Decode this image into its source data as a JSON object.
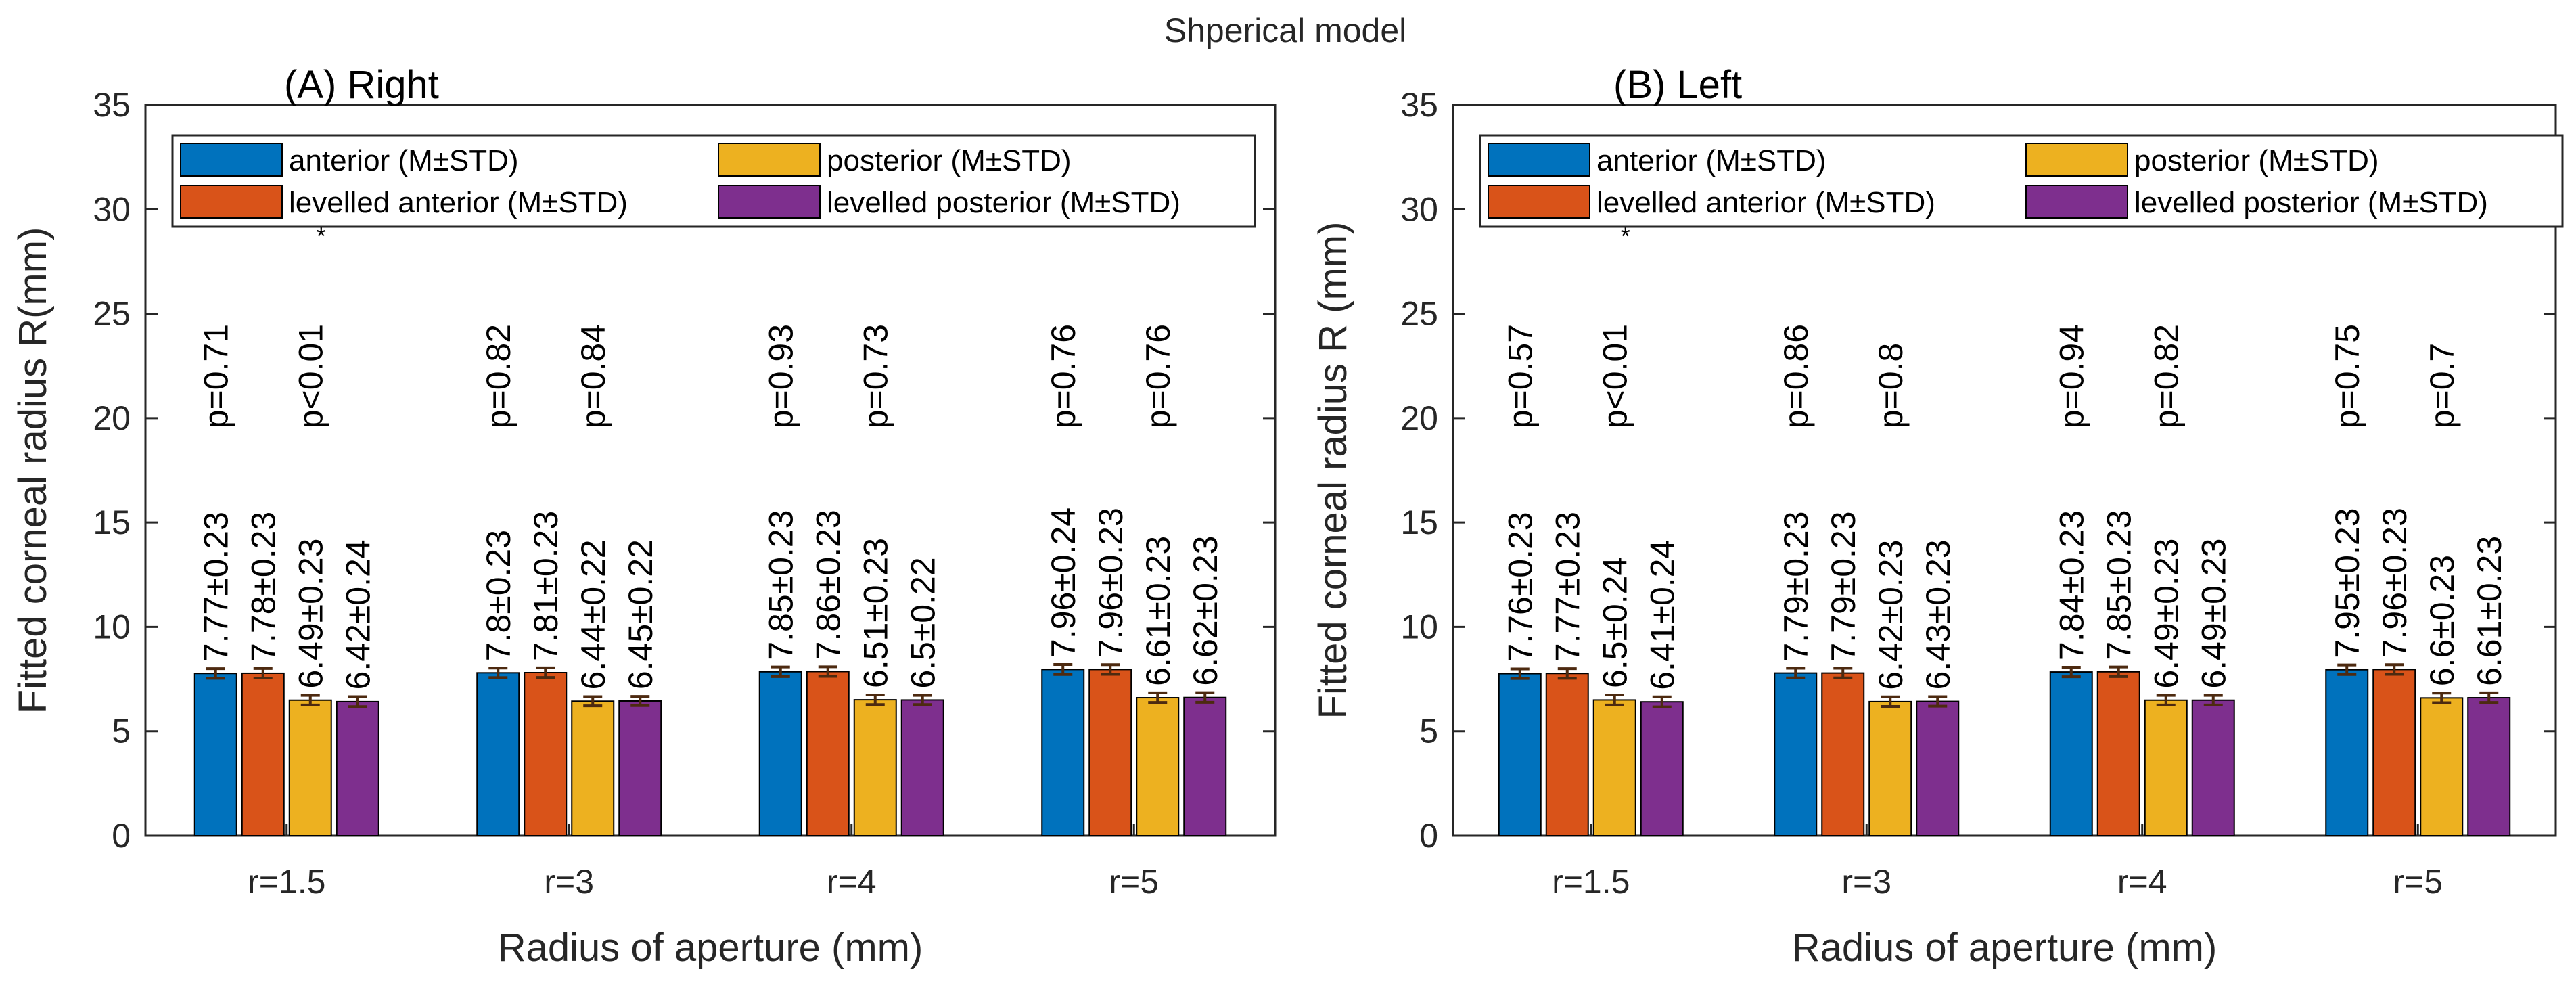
{
  "figure_title": "Shperical model",
  "colors": {
    "anterior": "#0072BD",
    "posterior": "#EDB120",
    "levelled_anterior": "#D95319",
    "levelled_posterior": "#7E2F8E",
    "error_bar": "#4D2A10"
  },
  "chart_data": [
    {
      "type": "bar",
      "title": "(A) Right",
      "xlabel": "Radius of aperture (mm)",
      "ylabel": "Fitted corneal radius R(mm)",
      "ylim": [
        0,
        35
      ],
      "yticks": [
        "0",
        "5",
        "10",
        "15",
        "20",
        "25",
        "30",
        "35"
      ],
      "categories": [
        "r=1.5",
        "r=3",
        "r=4",
        "r=5"
      ],
      "legend_position": "top",
      "series": [
        {
          "name": "anterior (M±STD)",
          "values": [
            7.77,
            7.8,
            7.85,
            7.96
          ],
          "std": [
            0.23,
            0.23,
            0.23,
            0.24
          ],
          "labels": [
            "7.77±0.23",
            "7.8±0.23",
            "7.85±0.23",
            "7.96±0.24"
          ]
        },
        {
          "name": "levelled anterior (M±STD)",
          "values": [
            7.78,
            7.81,
            7.86,
            7.96
          ],
          "std": [
            0.23,
            0.23,
            0.23,
            0.23
          ],
          "labels": [
            "7.78±0.23",
            "7.81±0.23",
            "7.86±0.23",
            "7.96±0.23"
          ]
        },
        {
          "name": "posterior (M±STD)",
          "values": [
            6.49,
            6.44,
            6.51,
            6.61
          ],
          "std": [
            0.23,
            0.22,
            0.23,
            0.23
          ],
          "labels": [
            "6.49±0.23",
            "6.44±0.22",
            "6.51±0.23",
            "6.61±0.23"
          ]
        },
        {
          "name": "levelled posterior (M±STD)",
          "values": [
            6.42,
            6.45,
            6.5,
            6.62
          ],
          "std": [
            0.24,
            0.22,
            0.22,
            0.23
          ],
          "labels": [
            "6.42±0.24",
            "6.45±0.22",
            "6.5±0.22",
            "6.62±0.23"
          ]
        }
      ],
      "p_values_anterior": [
        "p=0.71",
        "p=0.82",
        "p=0.93",
        "p=0.76"
      ],
      "p_values_posterior": [
        "p<0.01",
        "p=0.84",
        "p=0.73",
        "p=0.76"
      ],
      "significance_marks": [
        "*",
        "",
        "",
        ""
      ]
    },
    {
      "type": "bar",
      "title": "(B) Left",
      "xlabel": "Radius of aperture (mm)",
      "ylabel": "Fitted corneal radius R (mm)",
      "ylim": [
        0,
        35
      ],
      "yticks": [
        "0",
        "5",
        "10",
        "15",
        "20",
        "25",
        "30",
        "35"
      ],
      "categories": [
        "r=1.5",
        "r=3",
        "r=4",
        "r=5"
      ],
      "legend_position": "top",
      "series": [
        {
          "name": "anterior (M±STD)",
          "values": [
            7.76,
            7.79,
            7.84,
            7.95
          ],
          "std": [
            0.23,
            0.23,
            0.23,
            0.23
          ],
          "labels": [
            "7.76±0.23",
            "7.79±0.23",
            "7.84±0.23",
            "7.95±0.23"
          ]
        },
        {
          "name": "levelled anterior (M±STD)",
          "values": [
            7.77,
            7.79,
            7.85,
            7.96
          ],
          "std": [
            0.23,
            0.23,
            0.23,
            0.23
          ],
          "labels": [
            "7.77±0.23",
            "7.79±0.23",
            "7.85±0.23",
            "7.96±0.23"
          ]
        },
        {
          "name": "posterior (M±STD)",
          "values": [
            6.5,
            6.42,
            6.49,
            6.6
          ],
          "std": [
            0.24,
            0.23,
            0.23,
            0.23
          ],
          "labels": [
            "6.5±0.24",
            "6.42±0.23",
            "6.49±0.23",
            "6.6±0.23"
          ]
        },
        {
          "name": "levelled posterior (M±STD)",
          "values": [
            6.41,
            6.43,
            6.49,
            6.61
          ],
          "std": [
            0.24,
            0.23,
            0.23,
            0.23
          ],
          "labels": [
            "6.41±0.24",
            "6.43±0.23",
            "6.49±0.23",
            "6.61±0.23"
          ]
        }
      ],
      "p_values_anterior": [
        "p=0.57",
        "p=0.86",
        "p=0.94",
        "p=0.75"
      ],
      "p_values_posterior": [
        "p<0.01",
        "p=0.8",
        "p=0.82",
        "p=0.7"
      ],
      "significance_marks": [
        "*",
        "",
        "",
        ""
      ]
    }
  ]
}
